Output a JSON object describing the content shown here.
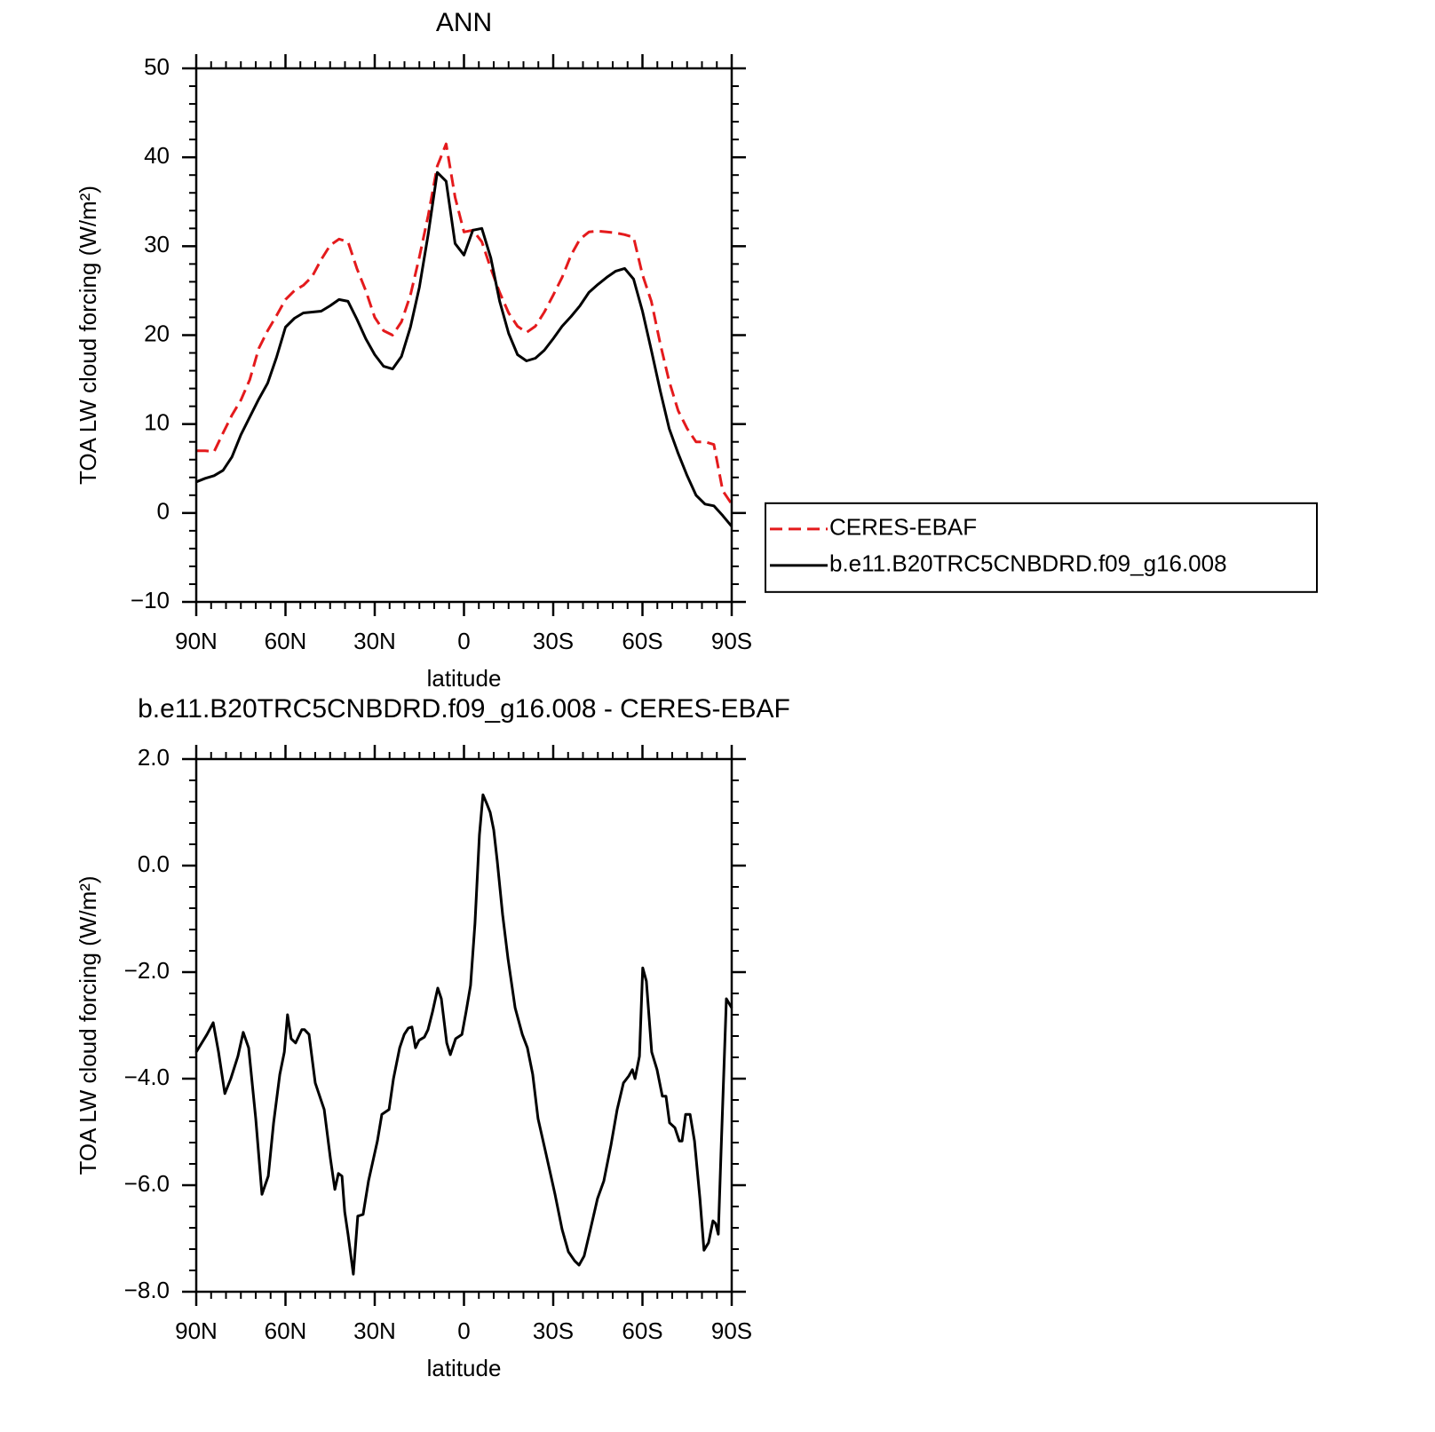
{
  "chart_data": [
    {
      "type": "line",
      "title": "ANN",
      "xlabel": "latitude",
      "ylabel": "TOA LW cloud forcing (W/m²)",
      "x": [
        90,
        87,
        84,
        81,
        78,
        75,
        72,
        69,
        66,
        63,
        60,
        57,
        54,
        51,
        48,
        45,
        42,
        39,
        36,
        33,
        30,
        27,
        24,
        21,
        18,
        15,
        12,
        9,
        6,
        3,
        0,
        -3,
        -6,
        -9,
        -12,
        -15,
        -18,
        -21,
        -24,
        -27,
        -30,
        -33,
        -36,
        -39,
        -42,
        -45,
        -48,
        -51,
        -54,
        -57,
        -60,
        -63,
        -66,
        -69,
        -72,
        -75,
        -78,
        -81,
        -84,
        -87,
        -90
      ],
      "series": [
        {
          "name": "CERES-EBAF",
          "color": "#e41a1c",
          "dash": "dashed",
          "values": [
            7.0,
            7.0,
            6.9,
            9.0,
            11.0,
            12.7,
            15.0,
            18.5,
            20.5,
            22.2,
            24.0,
            25.0,
            25.6,
            26.6,
            28.5,
            30.1,
            30.8,
            30.5,
            27.5,
            25.0,
            22.0,
            20.5,
            20.0,
            21.5,
            24.5,
            28.8,
            33.5,
            39.0,
            41.5,
            35.5,
            31.6,
            31.8,
            30.5,
            27.5,
            24.8,
            22.5,
            21.0,
            20.3,
            21.0,
            22.6,
            24.5,
            26.5,
            29.0,
            30.8,
            31.6,
            31.7,
            31.6,
            31.5,
            31.3,
            31.0,
            26.8,
            23.8,
            19.0,
            14.8,
            11.5,
            9.5,
            8.0,
            8.0,
            7.7,
            2.5,
            1.0
          ]
        },
        {
          "name": "b.e11.B20TRC5CNBDRD.f09_g16.008",
          "color": "#000000",
          "dash": "solid",
          "values": [
            3.5,
            3.9,
            4.2,
            4.8,
            6.3,
            8.8,
            10.8,
            12.8,
            14.6,
            17.5,
            20.9,
            21.9,
            22.5,
            22.6,
            22.7,
            23.3,
            24.0,
            23.8,
            21.8,
            19.6,
            17.8,
            16.5,
            16.2,
            17.6,
            20.9,
            25.4,
            31.4,
            38.3,
            37.3,
            30.3,
            29.0,
            31.8,
            32.0,
            28.7,
            23.8,
            20.2,
            17.8,
            17.1,
            17.4,
            18.3,
            19.6,
            21.0,
            22.1,
            23.3,
            24.8,
            25.7,
            26.5,
            27.2,
            27.5,
            26.3,
            22.7,
            18.3,
            13.7,
            9.5,
            6.7,
            4.2,
            2.0,
            1.0,
            0.8,
            -0.3,
            -1.5
          ]
        }
      ],
      "xlim": [
        90,
        -90
      ],
      "xticks": [
        {
          "value": 90,
          "label": "90N"
        },
        {
          "value": 60,
          "label": "60N"
        },
        {
          "value": 30,
          "label": "30N"
        },
        0,
        {
          "value": -30,
          "label": "30S"
        },
        {
          "value": -60,
          "label": "60S"
        },
        {
          "value": -90,
          "label": "90S"
        }
      ],
      "xminorticks": [
        85,
        80,
        75,
        70,
        65,
        55,
        50,
        45,
        40,
        35,
        25,
        20,
        15,
        10,
        5,
        -5,
        -10,
        -15,
        -20,
        -25,
        -35,
        -40,
        -45,
        -50,
        -55,
        -65,
        -70,
        -75,
        -80,
        -85
      ],
      "ylim": [
        -10,
        50
      ],
      "yticks": [
        {
          "value": -10,
          "label": "−10"
        },
        0,
        10,
        20,
        30,
        40,
        50
      ],
      "yminorticks": [
        -8,
        -6,
        -4,
        -2,
        2,
        4,
        6,
        8,
        12,
        14,
        16,
        18,
        22,
        24,
        26,
        28,
        32,
        34,
        36,
        38,
        42,
        44,
        46,
        48
      ],
      "legend": "right"
    },
    {
      "type": "line",
      "title": "b.e11.B20TRC5CNBDRD.f09_g16.008 - CERES-EBAF",
      "xlabel": "latitude",
      "ylabel": "TOA LW cloud forcing (W/m²)",
      "x": [
        90,
        86.4,
        84.3,
        82.5,
        80.4,
        78.4,
        76.0,
        74.2,
        72.4,
        70.0,
        67.9,
        65.8,
        64.0,
        61.9,
        60.4,
        59.3,
        58.1,
        56.6,
        54.5,
        53.6,
        52.1,
        50.0,
        47.0,
        44.9,
        43.4,
        42.2,
        41.0,
        40.1,
        39.0,
        37.2,
        35.7,
        33.9,
        32.1,
        29.1,
        27.6,
        25.2,
        23.7,
        21.6,
        20.1,
        18.7,
        17.5,
        16.3,
        15.1,
        13.3,
        12.1,
        10.6,
        8.8,
        7.6,
        6.7,
        5.8,
        4.6,
        2.8,
        0.7,
        -0.7,
        -2.2,
        -3.7,
        -5.2,
        -6.4,
        -7.6,
        -8.8,
        -10.0,
        -11.2,
        -13.0,
        -14.8,
        -17.2,
        -19.6,
        -21.3,
        -23.1,
        -24.9,
        -27.6,
        -30.6,
        -33.0,
        -35.1,
        -37.2,
        -38.7,
        -40.4,
        -42.5,
        -44.9,
        -47.0,
        -49.4,
        -51.5,
        -53.6,
        -55.4,
        -56.6,
        -57.5,
        -59.0,
        -60.1,
        -61.3,
        -63.1,
        -64.9,
        -66.7,
        -67.9,
        -69.1,
        -70.9,
        -72.4,
        -73.3,
        -74.5,
        -76.0,
        -77.5,
        -79.3,
        -80.7,
        -82.2,
        -83.7,
        -84.6,
        -85.5,
        -86.4,
        -88.2,
        -90
      ],
      "values": [
        -3.5,
        -3.17,
        -2.95,
        -3.5,
        -4.28,
        -4.0,
        -3.58,
        -3.13,
        -3.42,
        -4.75,
        -6.17,
        -5.83,
        -4.83,
        -3.92,
        -3.5,
        -2.8,
        -3.25,
        -3.33,
        -3.08,
        -3.08,
        -3.17,
        -4.08,
        -4.58,
        -5.5,
        -6.08,
        -5.78,
        -5.83,
        -6.5,
        -6.92,
        -7.67,
        -6.58,
        -6.55,
        -5.92,
        -5.17,
        -4.67,
        -4.58,
        -4.0,
        -3.42,
        -3.17,
        -3.05,
        -3.03,
        -3.42,
        -3.28,
        -3.22,
        -3.08,
        -2.75,
        -2.3,
        -2.5,
        -2.92,
        -3.33,
        -3.55,
        -3.25,
        -3.17,
        -2.75,
        -2.25,
        -1.08,
        0.58,
        1.33,
        1.17,
        1.0,
        0.67,
        0.08,
        -0.92,
        -1.75,
        -2.67,
        -3.17,
        -3.42,
        -3.92,
        -4.75,
        -5.42,
        -6.17,
        -6.83,
        -7.25,
        -7.42,
        -7.5,
        -7.33,
        -6.83,
        -6.25,
        -5.92,
        -5.25,
        -4.58,
        -4.08,
        -3.95,
        -3.83,
        -4.0,
        -3.58,
        -1.92,
        -2.17,
        -3.5,
        -3.83,
        -4.33,
        -4.33,
        -4.83,
        -4.92,
        -5.17,
        -5.17,
        -4.67,
        -4.67,
        -5.17,
        -6.25,
        -7.22,
        -7.08,
        -6.67,
        -6.72,
        -6.92,
        -5.42,
        -2.5,
        -2.67
      ],
      "color": "#000000",
      "dash": "solid",
      "xlim": [
        90,
        -90
      ],
      "xticks": [
        {
          "value": 90,
          "label": "90N"
        },
        {
          "value": 60,
          "label": "60N"
        },
        {
          "value": 30,
          "label": "30N"
        },
        0,
        {
          "value": -30,
          "label": "30S"
        },
        {
          "value": -60,
          "label": "60S"
        },
        {
          "value": -90,
          "label": "90S"
        }
      ],
      "xminorticks": [
        85,
        80,
        75,
        70,
        65,
        55,
        50,
        45,
        40,
        35,
        25,
        20,
        15,
        10,
        5,
        -5,
        -10,
        -15,
        -20,
        -25,
        -35,
        -40,
        -45,
        -50,
        -55,
        -65,
        -70,
        -75,
        -80,
        -85
      ],
      "ylim": [
        -8,
        2
      ],
      "yticks": [
        {
          "value": -8,
          "label": "−8.0"
        },
        {
          "value": -6,
          "label": "−6.0"
        },
        {
          "value": -4,
          "label": "−4.0"
        },
        {
          "value": -2,
          "label": "−2.0"
        },
        {
          "value": 0,
          "label": "0.0"
        },
        {
          "value": 2,
          "label": "2.0"
        }
      ],
      "yminorticks": [
        1.6,
        1.2,
        0.8,
        0.4,
        -0.4,
        -0.8,
        -1.2,
        -1.6,
        -2.4,
        -2.8,
        -3.2,
        -3.6,
        -4.4,
        -4.8,
        -5.2,
        -5.6,
        -6.4,
        -6.8,
        -7.2,
        -7.6
      ]
    }
  ]
}
